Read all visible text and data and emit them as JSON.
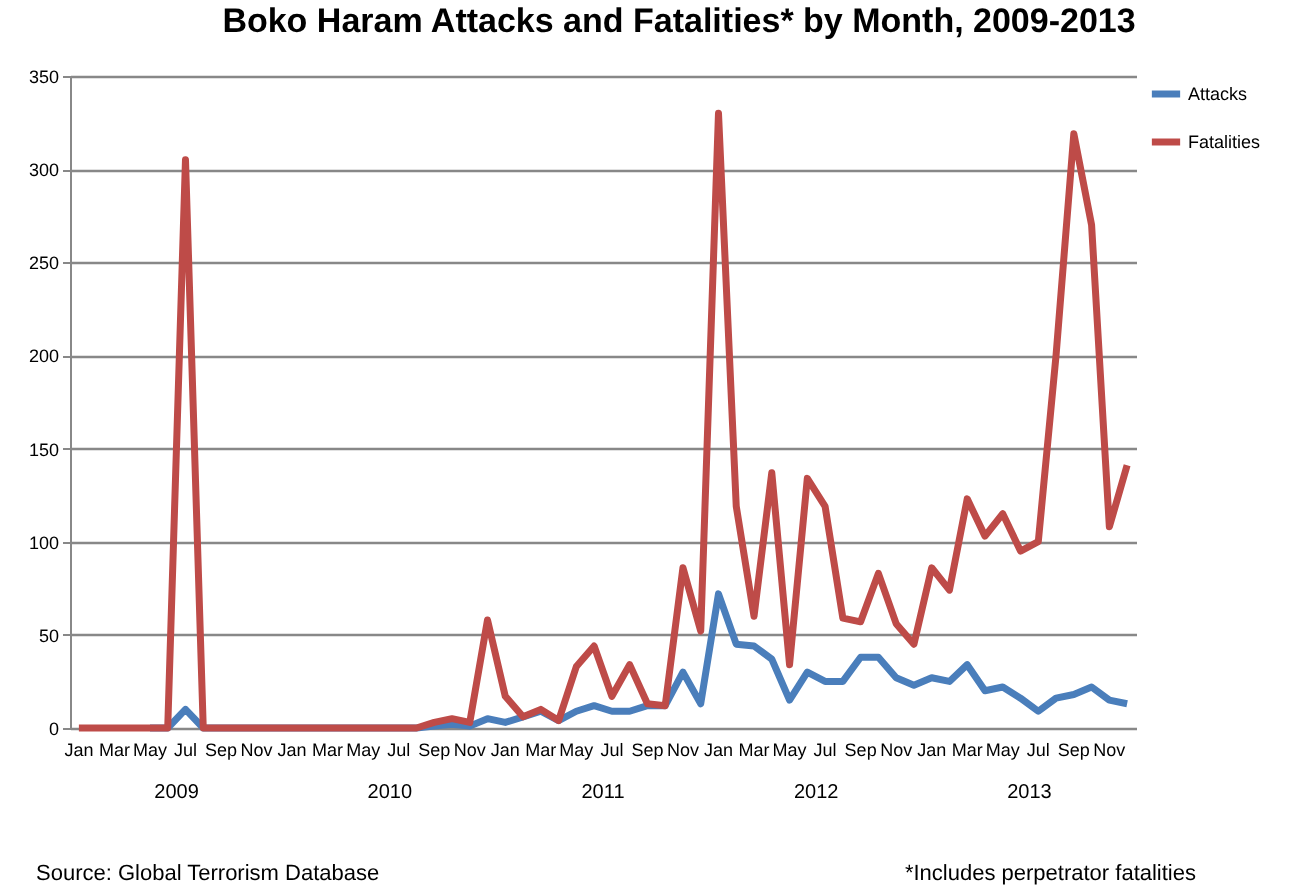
{
  "chart_data": {
    "type": "line",
    "title": "Boko Haram Attacks and Fatalities* by Month, 2009-2013",
    "categories": [
      "Jan",
      null,
      "Mar",
      null,
      "May",
      null,
      "Jul",
      null,
      "Sep",
      null,
      "Nov",
      null,
      "Jan",
      null,
      "Mar",
      null,
      "May",
      null,
      "Jul",
      null,
      "Sep",
      null,
      "Nov",
      null,
      "Jan",
      null,
      "Mar",
      null,
      "May",
      null,
      "Jul",
      null,
      "Sep",
      null,
      "Nov",
      null,
      "Jan",
      null,
      "Mar",
      null,
      "May",
      null,
      "Jul",
      null,
      "Sep",
      null,
      "Nov",
      null,
      "Jan",
      null,
      "Mar",
      null,
      "May",
      null,
      "Jul",
      null,
      "Sep",
      null,
      "Nov",
      null
    ],
    "series": [
      {
        "name": "Attacks",
        "color": "#4a7ebb",
        "values": [
          null,
          null,
          null,
          null,
          0,
          0,
          10,
          0,
          0,
          0,
          0,
          0,
          0,
          0,
          0,
          0,
          0,
          0,
          0,
          0,
          1,
          2,
          1,
          5,
          3,
          6,
          9,
          4,
          9,
          12,
          9,
          9,
          12,
          12,
          30,
          13,
          72,
          45,
          44,
          37,
          15,
          30,
          25,
          25,
          38,
          38,
          27,
          23,
          27,
          25,
          34,
          20,
          22,
          16,
          9,
          16,
          18,
          22,
          15,
          13
        ]
      },
      {
        "name": "Fatalities",
        "color": "#be4b48",
        "values": [
          0,
          0,
          0,
          0,
          0,
          0,
          305,
          0,
          0,
          0,
          0,
          0,
          0,
          0,
          0,
          0,
          0,
          0,
          0,
          0,
          3,
          5,
          3,
          58,
          17,
          6,
          10,
          4,
          33,
          44,
          17,
          34,
          13,
          12,
          86,
          52,
          330,
          119,
          60,
          137,
          34,
          134,
          119,
          59,
          57,
          83,
          56,
          45,
          86,
          74,
          123,
          103,
          115,
          95,
          100,
          200,
          319,
          270,
          108,
          141
        ]
      }
    ],
    "ylim": [
      0,
      350
    ],
    "yticks": [
      0,
      50,
      100,
      150,
      200,
      250,
      300,
      350
    ],
    "grid": "y",
    "legend": "right",
    "line_style": "solid",
    "marker": "none",
    "annotations": [
      "2009",
      "2010",
      "2011",
      "2012",
      "2013",
      "Source: Global Terrorism Database",
      "*Includes perpetrator fatalities"
    ]
  }
}
